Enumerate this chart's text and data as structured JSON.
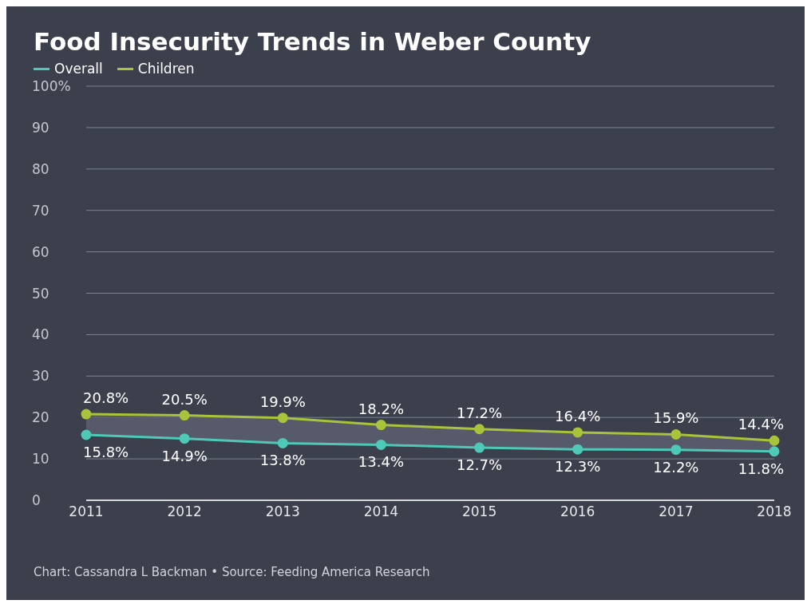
{
  "chart_data": {
    "type": "line",
    "title": "Food Insecurity Trends in Weber County",
    "categories": [
      "2011",
      "2012",
      "2013",
      "2014",
      "2015",
      "2016",
      "2017",
      "2018"
    ],
    "series": [
      {
        "name": "Overall",
        "color": "#4fc9b7",
        "values": [
          15.8,
          14.9,
          13.8,
          13.4,
          12.7,
          12.3,
          12.2,
          11.8
        ],
        "value_labels": [
          "15.8%",
          "14.9%",
          "13.8%",
          "13.4%",
          "12.7%",
          "12.3%",
          "12.2%",
          "11.8%"
        ]
      },
      {
        "name": "Children",
        "color": "#a7c43b",
        "values": [
          20.8,
          20.5,
          19.9,
          18.2,
          17.2,
          16.4,
          15.9,
          14.4
        ],
        "value_labels": [
          "20.8%",
          "20.5%",
          "19.9%",
          "18.2%",
          "17.2%",
          "16.4%",
          "15.9%",
          "14.4%"
        ],
        "lower": [
          15.8,
          14.9,
          13.8,
          13.4,
          12.7,
          12.3,
          12.2,
          11.8
        ],
        "upper": [
          20.8,
          20.5,
          19.9,
          18.2,
          17.2,
          16.4,
          15.9,
          14.4
        ]
      }
    ],
    "ylim": [
      0,
      100
    ],
    "yticks": [
      0,
      10,
      20,
      30,
      40,
      50,
      60,
      70,
      80,
      90,
      {
        "value": 100,
        "label": "100%"
      }
    ],
    "grid": "y",
    "legend": "top left",
    "marker": "circle",
    "line_style": "solid",
    "annotations": [
      "Chart: Cassandra L Backman • Source: Feeding America Research"
    ]
  }
}
